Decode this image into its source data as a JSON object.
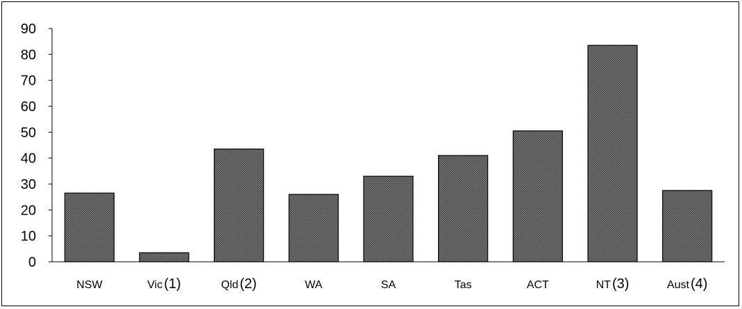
{
  "chart_data": {
    "type": "bar",
    "title": "",
    "xlabel": "",
    "ylabel": "",
    "ylim": [
      0,
      90
    ],
    "yticks": [
      0,
      10,
      20,
      30,
      40,
      50,
      60,
      70,
      80,
      90
    ],
    "grid": false,
    "legend": "none",
    "bar_fill": "crosshatch-dark-grey",
    "bar_color": "#555555",
    "categories": [
      {
        "name": "NSW",
        "note": ""
      },
      {
        "name": "Vic",
        "note": "(1)"
      },
      {
        "name": "Qld",
        "note": "(2)"
      },
      {
        "name": "WA",
        "note": ""
      },
      {
        "name": "SA",
        "note": ""
      },
      {
        "name": "Tas",
        "note": ""
      },
      {
        "name": "ACT",
        "note": ""
      },
      {
        "name": "NT",
        "note": "(3)"
      },
      {
        "name": "Aust",
        "note": "(4)"
      }
    ],
    "values": [
      26.5,
      3.5,
      43.5,
      26,
      33,
      41,
      50.5,
      83.5,
      27.5
    ]
  }
}
